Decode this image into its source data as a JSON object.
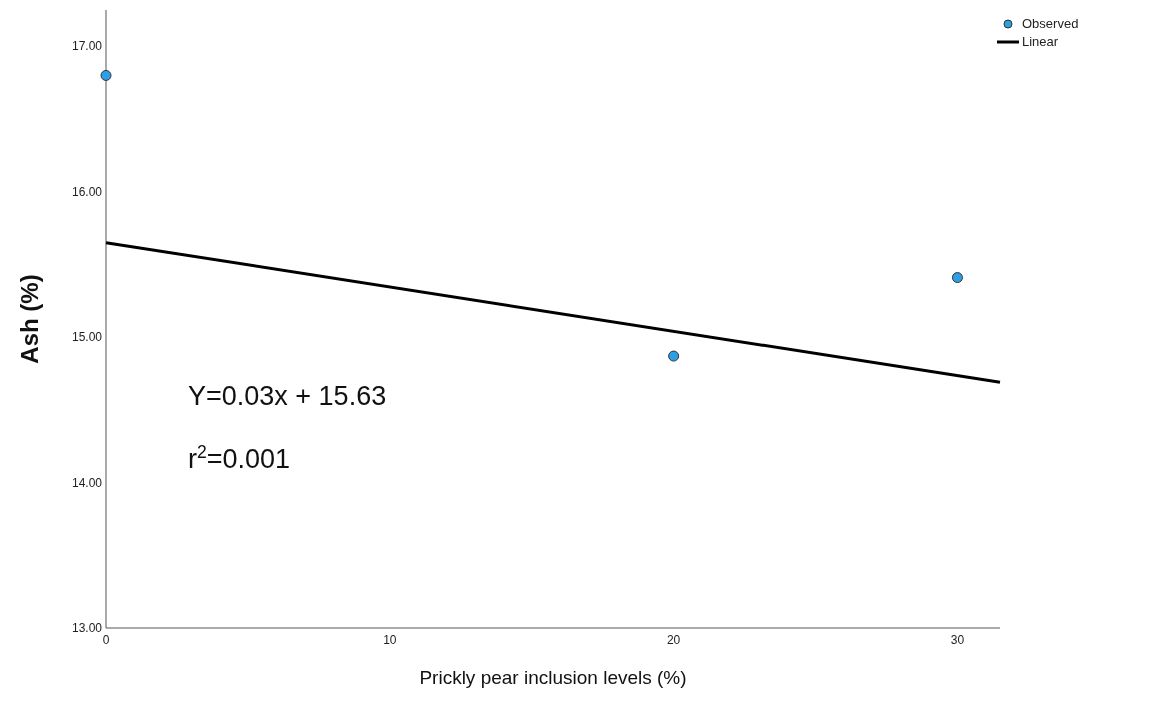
{
  "chart_data": {
    "type": "scatter",
    "xlabel": "Prickly pear inclusion levels (%)",
    "ylabel": "Ash (%)",
    "xlim": [
      0,
      31.5
    ],
    "xticks": [
      0,
      10,
      20,
      30
    ],
    "ylim": [
      13,
      17.25
    ],
    "yticks": [
      {
        "value": 13,
        "label": "13.00"
      },
      {
        "value": 14,
        "label": "14.00"
      },
      {
        "value": 15,
        "label": "15.00"
      },
      {
        "value": 16,
        "label": "16.00"
      },
      {
        "value": 17,
        "label": "17.00"
      }
    ],
    "series": [
      {
        "name": "Observed",
        "color": "#2e9fe6",
        "x": [
          0,
          20,
          30
        ],
        "values": [
          16.8,
          14.87,
          15.41
        ],
        "marker": "circle"
      },
      {
        "name": "Linear",
        "type": "line",
        "color": "#000000",
        "x": [
          0,
          31.5
        ],
        "values": [
          15.65,
          14.69
        ],
        "marker": "none",
        "line_style": "solid"
      }
    ],
    "annotations": [
      "Y=0.03x + 15.63",
      "r$^{2}$=0.001"
    ],
    "legend": "top right",
    "grid": false
  }
}
